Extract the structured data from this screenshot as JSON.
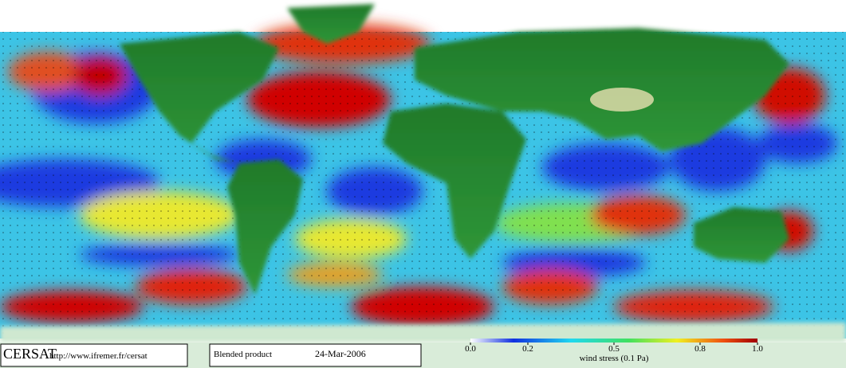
{
  "footer": {
    "logo": "CERSAT",
    "url": "http://www.ifremer.fr/cersat",
    "product": "Blended product",
    "date": "24-Mar-2006"
  },
  "colorbar": {
    "title": "wind stress (0.1 Pa)",
    "lim": [
      0,
      1
    ],
    "ticks": [
      {
        "value": 0,
        "label": "0.0"
      },
      0.2,
      0.5,
      0.8,
      {
        "value": 1,
        "label": "1.0"
      }
    ]
  }
}
